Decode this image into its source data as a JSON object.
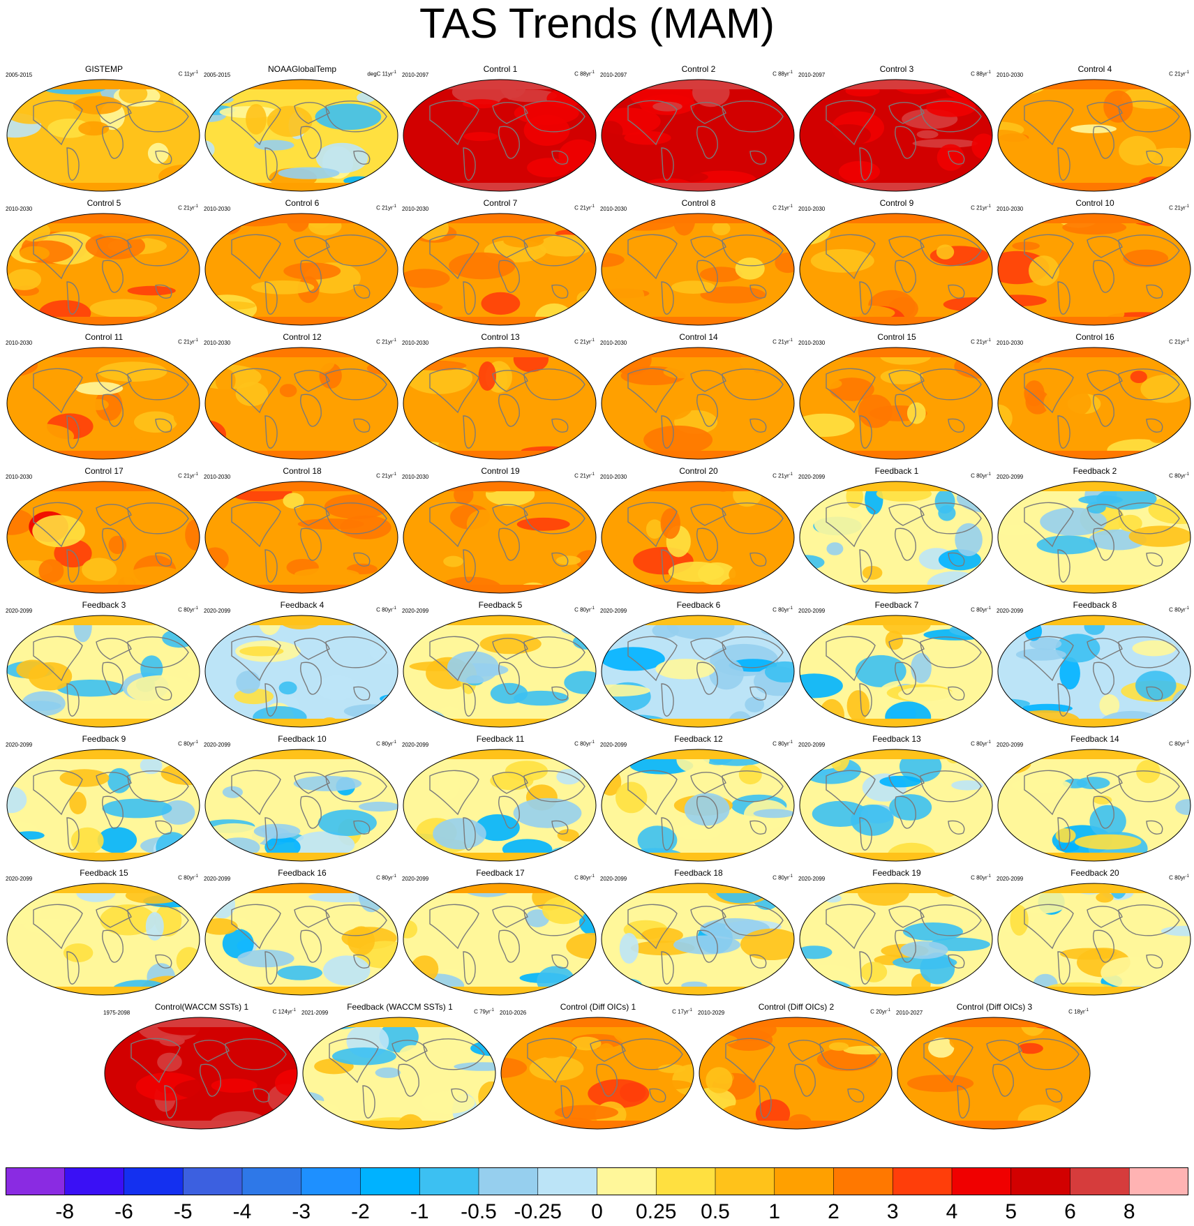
{
  "title": "TAS Trends (MAM)",
  "colorbar": {
    "labels": [
      "-8",
      "-6",
      "-5",
      "-4",
      "-3",
      "-2",
      "-1",
      "-0.5",
      "-0.25",
      "0",
      "0.25",
      "0.5",
      "1",
      "2",
      "3",
      "4",
      "5",
      "6",
      "8"
    ],
    "colors": [
      "#8a2be2",
      "#3a10f5",
      "#1430f0",
      "#3c60e0",
      "#2e78e8",
      "#1e90ff",
      "#00b2ff",
      "#3cc0f2",
      "#96cfee",
      "#bce4f7",
      "#fff79a",
      "#ffe040",
      "#ffc21a",
      "#ffa000",
      "#ff7800",
      "#ff3e0a",
      "#f00000",
      "#d20000",
      "#d63c3c",
      "#ffb3b3"
    ]
  },
  "chart_data": {
    "type": "heatmap",
    "title": "TAS Trends (MAM)",
    "projection": "Robinson global maps (small multiples)",
    "colorbar_levels": [
      -8,
      -6,
      -5,
      -4,
      -3,
      -2,
      -1,
      -0.5,
      -0.25,
      0,
      0.25,
      0.5,
      1,
      2,
      3,
      4,
      5,
      6,
      8
    ],
    "panels": [
      {
        "title": "GISTEMP",
        "period": "2005-2015",
        "units": "C 11yr",
        "sup": "-1",
        "level": 0.5
      },
      {
        "title": "NOAAGlobalTemp",
        "period": "2005-2015",
        "units": "degC 11yr",
        "sup": "-1",
        "level": 0.4
      },
      {
        "title": "Control 1",
        "period": "2010-2097",
        "units": "C 88yr",
        "sup": "-1",
        "level": 5
      },
      {
        "title": "Control 2",
        "period": "2010-2097",
        "units": "C 88yr",
        "sup": "-1",
        "level": 5
      },
      {
        "title": "Control 3",
        "period": "2010-2097",
        "units": "C 88yr",
        "sup": "-1",
        "level": 5
      },
      {
        "title": "Control 4",
        "period": "2010-2030",
        "units": "C 21yr",
        "sup": "-1",
        "level": 1.2
      },
      {
        "title": "Control 5",
        "period": "2010-2030",
        "units": "C 21yr",
        "sup": "-1",
        "level": 1.5
      },
      {
        "title": "Control 6",
        "period": "2010-2030",
        "units": "C 21yr",
        "sup": "-1",
        "level": 1.3
      },
      {
        "title": "Control 7",
        "period": "2010-2030",
        "units": "C 21yr",
        "sup": "-1",
        "level": 1.2
      },
      {
        "title": "Control 8",
        "period": "2010-2030",
        "units": "C 21yr",
        "sup": "-1",
        "level": 1.4
      },
      {
        "title": "Control 9",
        "period": "2010-2030",
        "units": "C 21yr",
        "sup": "-1",
        "level": 1.3
      },
      {
        "title": "Control 10",
        "period": "2010-2030",
        "units": "C 21yr",
        "sup": "-1",
        "level": 1.4
      },
      {
        "title": "Control 11",
        "period": "2010-2030",
        "units": "C 21yr",
        "sup": "-1",
        "level": 1.3
      },
      {
        "title": "Control 12",
        "period": "2010-2030",
        "units": "C 21yr",
        "sup": "-1",
        "level": 1.2
      },
      {
        "title": "Control 13",
        "period": "2010-2030",
        "units": "C 21yr",
        "sup": "-1",
        "level": 1.3
      },
      {
        "title": "Control 14",
        "period": "2010-2030",
        "units": "C 21yr",
        "sup": "-1",
        "level": 1.4
      },
      {
        "title": "Control 15",
        "period": "2010-2030",
        "units": "C 21yr",
        "sup": "-1",
        "level": 1.2
      },
      {
        "title": "Control 16",
        "period": "2010-2030",
        "units": "C 21yr",
        "sup": "-1",
        "level": 1.3
      },
      {
        "title": "Control 17",
        "period": "2010-2030",
        "units": "C 21yr",
        "sup": "-1",
        "level": 1.5
      },
      {
        "title": "Control 18",
        "period": "2010-2030",
        "units": "C 21yr",
        "sup": "-1",
        "level": 1.3
      },
      {
        "title": "Control 19",
        "period": "2010-2030",
        "units": "C 21yr",
        "sup": "-1",
        "level": 1.4
      },
      {
        "title": "Control 20",
        "period": "2010-2030",
        "units": "C 21yr",
        "sup": "-1",
        "level": 1.3
      },
      {
        "title": "Feedback 1",
        "period": "2020-2099",
        "units": "C 80yr",
        "sup": "-1",
        "level": 0
      },
      {
        "title": "Feedback 2",
        "period": "2020-2099",
        "units": "C 80yr",
        "sup": "-1",
        "level": 0
      },
      {
        "title": "Feedback 3",
        "period": "2020-2099",
        "units": "C 80yr",
        "sup": "-1",
        "level": 0
      },
      {
        "title": "Feedback 4",
        "period": "2020-2099",
        "units": "C 80yr",
        "sup": "-1",
        "level": -0.1
      },
      {
        "title": "Feedback 5",
        "period": "2020-2099",
        "units": "C 80yr",
        "sup": "-1",
        "level": 0
      },
      {
        "title": "Feedback 6",
        "period": "2020-2099",
        "units": "C 80yr",
        "sup": "-1",
        "level": -0.1
      },
      {
        "title": "Feedback 7",
        "period": "2020-2099",
        "units": "C 80yr",
        "sup": "-1",
        "level": 0
      },
      {
        "title": "Feedback 8",
        "period": "2020-2099",
        "units": "C 80yr",
        "sup": "-1",
        "level": -0.1
      },
      {
        "title": "Feedback 9",
        "period": "2020-2099",
        "units": "C 80yr",
        "sup": "-1",
        "level": 0.1
      },
      {
        "title": "Feedback 10",
        "period": "2020-2099",
        "units": "C 80yr",
        "sup": "-1",
        "level": 0.1
      },
      {
        "title": "Feedback 11",
        "period": "2020-2099",
        "units": "C 80yr",
        "sup": "-1",
        "level": 0.1
      },
      {
        "title": "Feedback 12",
        "period": "2020-2099",
        "units": "C 80yr",
        "sup": "-1",
        "level": 0
      },
      {
        "title": "Feedback 13",
        "period": "2020-2099",
        "units": "C 80yr",
        "sup": "-1",
        "level": 0
      },
      {
        "title": "Feedback 14",
        "period": "2020-2099",
        "units": "C 80yr",
        "sup": "-1",
        "level": 0
      },
      {
        "title": "Feedback 15",
        "period": "2020-2099",
        "units": "C 80yr",
        "sup": "-1",
        "level": 0.1
      },
      {
        "title": "Feedback 16",
        "period": "2020-2099",
        "units": "C 80yr",
        "sup": "-1",
        "level": 0.2
      },
      {
        "title": "Feedback 17",
        "period": "2020-2099",
        "units": "C 80yr",
        "sup": "-1",
        "level": 0.2
      },
      {
        "title": "Feedback 18",
        "period": "2020-2099",
        "units": "C 80yr",
        "sup": "-1",
        "level": 0
      },
      {
        "title": "Feedback 19",
        "period": "2020-2099",
        "units": "C 80yr",
        "sup": "-1",
        "level": 0.1
      },
      {
        "title": "Feedback 20",
        "period": "2020-2099",
        "units": "C 80yr",
        "sup": "-1",
        "level": 0.1
      },
      {
        "title": "Control(WACCM SSTs) 1",
        "period": "1975-2098",
        "units": "C 124yr",
        "sup": "-1",
        "level": 5.5
      },
      {
        "title": "Feedback (WACCM SSTs) 1",
        "period": "2021-2099",
        "units": "C 79yr",
        "sup": "-1",
        "level": 0
      },
      {
        "title": "Control (Diff OICs) 1",
        "period": "2010-2026",
        "units": "C 17yr",
        "sup": "-1",
        "level": 1.3
      },
      {
        "title": "Control (Diff OICs) 2",
        "period": "2010-2029",
        "units": "C 20yr",
        "sup": "-1",
        "level": 1.4
      },
      {
        "title": "Control (Diff OICs) 3",
        "period": "2010-2027",
        "units": "C 18yr",
        "sup": "-1",
        "level": 1.1
      }
    ]
  }
}
